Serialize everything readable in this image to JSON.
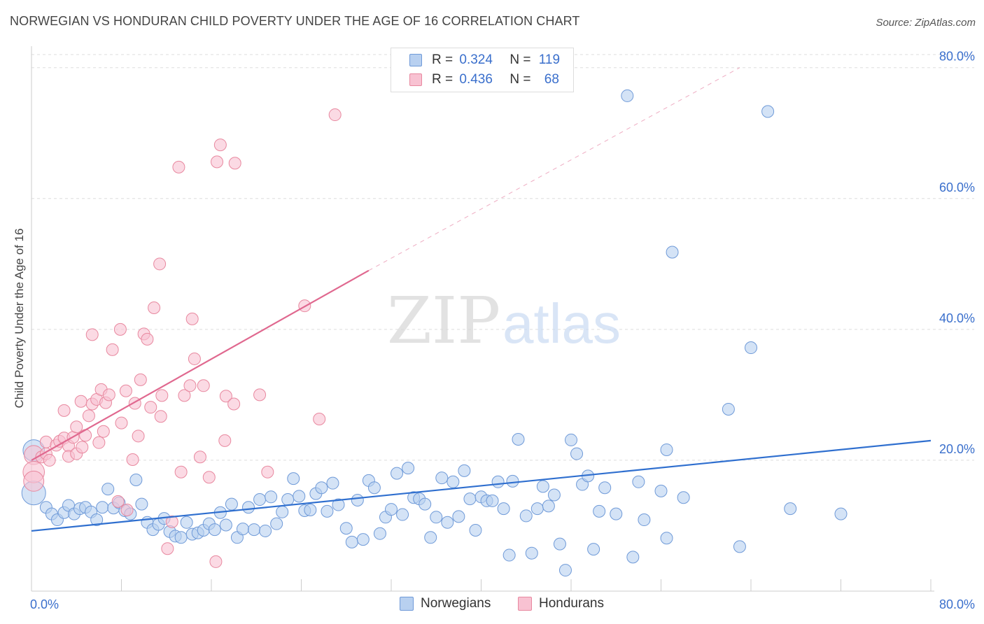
{
  "title": "NORWEGIAN VS HONDURAN CHILD POVERTY UNDER THE AGE OF 16 CORRELATION CHART",
  "source": "Source: ZipAtlas.com",
  "watermark": {
    "zip": "ZIP",
    "atlas": "atlas"
  },
  "colors": {
    "blue_fill": "#b8d0f0",
    "blue_stroke": "#6f9ad8",
    "blue_line": "#2f6fcf",
    "pink_fill": "#f8c2d2",
    "pink_stroke": "#e8889f",
    "pink_line": "#e0688f",
    "axis_text": "#3a6fcc",
    "grid": "#dddddd"
  },
  "legend_top": {
    "rows": [
      {
        "r_label": "R = ",
        "r_value": "0.324",
        "n_label": "N = ",
        "n_value": "119"
      },
      {
        "r_label": "R = ",
        "r_value": "0.436",
        "n_label": "N = ",
        "n_value": "68"
      }
    ]
  },
  "legend_bottom": [
    "Norwegians",
    "Hondurans"
  ],
  "chart_data": {
    "type": "scatter",
    "title": "NORWEGIAN VS HONDURAN CHILD POVERTY UNDER THE AGE OF 16 CORRELATION CHART",
    "xlabel": "",
    "ylabel": "Child Poverty Under the Age of 16",
    "xlim": [
      0,
      80
    ],
    "ylim": [
      0,
      82
    ],
    "x_tick_labels": [
      "0.0%",
      "80.0%"
    ],
    "y_ticks": [
      20,
      40,
      60,
      80
    ],
    "y_tick_labels": [
      "20.0%",
      "40.0%",
      "60.0%",
      "80.0%"
    ],
    "x_minor_ticks": [
      8,
      16,
      24,
      32,
      40,
      48,
      56,
      64,
      72,
      80
    ],
    "grid": true,
    "legend_position": "top-center",
    "series": [
      {
        "name": "Norwegians",
        "r": 0.324,
        "n": 119,
        "trend": {
          "x": [
            0,
            80
          ],
          "y": [
            9.2,
            23.0
          ],
          "dashed_extension": false
        },
        "points": [
          [
            0.2,
            21.5,
            1.8
          ],
          [
            0.2,
            15.0,
            2.0
          ],
          [
            1.3,
            12.8,
            1.0
          ],
          [
            1.8,
            11.8,
            1.0
          ],
          [
            2.3,
            10.9,
            1.0
          ],
          [
            2.9,
            12.0,
            1.0
          ],
          [
            3.3,
            13.1,
            1.0
          ],
          [
            3.8,
            11.8,
            1.0
          ],
          [
            4.3,
            12.6,
            1.0
          ],
          [
            4.8,
            12.8,
            1.0
          ],
          [
            5.3,
            12.1,
            1.0
          ],
          [
            5.8,
            10.9,
            1.0
          ],
          [
            6.3,
            12.8,
            1.0
          ],
          [
            6.8,
            15.6,
            1.0
          ],
          [
            7.3,
            12.7,
            1.0
          ],
          [
            7.8,
            13.5,
            1.0
          ],
          [
            8.3,
            12.3,
            1.0
          ],
          [
            8.8,
            11.8,
            1.0
          ],
          [
            9.3,
            17.0,
            1.0
          ],
          [
            9.8,
            13.3,
            1.0
          ],
          [
            10.3,
            10.5,
            1.0
          ],
          [
            10.8,
            9.4,
            1.0
          ],
          [
            11.3,
            10.2,
            1.0
          ],
          [
            11.8,
            11.1,
            1.0
          ],
          [
            12.3,
            9.1,
            1.0
          ],
          [
            12.8,
            8.4,
            1.0
          ],
          [
            13.3,
            8.2,
            1.0
          ],
          [
            13.8,
            10.5,
            1.0
          ],
          [
            14.3,
            8.7,
            1.0
          ],
          [
            14.8,
            8.9,
            1.0
          ],
          [
            15.3,
            9.3,
            1.0
          ],
          [
            15.8,
            10.3,
            1.0
          ],
          [
            16.3,
            9.4,
            1.0
          ],
          [
            16.8,
            12.0,
            1.0
          ],
          [
            17.3,
            10.1,
            1.0
          ],
          [
            17.8,
            13.3,
            1.0
          ],
          [
            18.3,
            8.2,
            1.0
          ],
          [
            18.8,
            9.5,
            1.0
          ],
          [
            19.3,
            12.8,
            1.0
          ],
          [
            19.8,
            9.4,
            1.0
          ],
          [
            20.3,
            14.0,
            1.0
          ],
          [
            20.8,
            9.2,
            1.0
          ],
          [
            21.3,
            14.4,
            1.0
          ],
          [
            21.8,
            10.3,
            1.0
          ],
          [
            22.3,
            12.1,
            1.0
          ],
          [
            22.8,
            14.0,
            1.0
          ],
          [
            23.3,
            17.2,
            1.0
          ],
          [
            23.8,
            14.5,
            1.0
          ],
          [
            24.3,
            12.3,
            1.0
          ],
          [
            24.8,
            12.4,
            1.0
          ],
          [
            25.3,
            14.9,
            1.0
          ],
          [
            25.8,
            15.8,
            1.0
          ],
          [
            26.3,
            12.2,
            1.0
          ],
          [
            26.8,
            16.5,
            1.0
          ],
          [
            27.3,
            13.2,
            1.0
          ],
          [
            28.0,
            9.6,
            1.0
          ],
          [
            28.5,
            7.5,
            1.0
          ],
          [
            29.0,
            13.9,
            1.0
          ],
          [
            29.5,
            7.9,
            1.0
          ],
          [
            30.0,
            16.9,
            1.0
          ],
          [
            30.5,
            15.8,
            1.0
          ],
          [
            31.0,
            8.8,
            1.0
          ],
          [
            31.5,
            11.3,
            1.0
          ],
          [
            32.0,
            12.5,
            1.0
          ],
          [
            32.5,
            18.0,
            1.0
          ],
          [
            33.0,
            11.7,
            1.0
          ],
          [
            33.5,
            18.8,
            1.0
          ],
          [
            34.0,
            14.3,
            1.0
          ],
          [
            34.5,
            14.1,
            1.0
          ],
          [
            35.0,
            13.3,
            1.0
          ],
          [
            35.5,
            8.2,
            1.0
          ],
          [
            36.0,
            11.3,
            1.0
          ],
          [
            36.5,
            17.3,
            1.0
          ],
          [
            37.0,
            10.5,
            1.0
          ],
          [
            37.5,
            16.7,
            1.0
          ],
          [
            38.0,
            11.4,
            1.0
          ],
          [
            38.5,
            18.4,
            1.0
          ],
          [
            39.0,
            14.1,
            1.0
          ],
          [
            39.5,
            9.3,
            1.0
          ],
          [
            40.0,
            14.4,
            1.0
          ],
          [
            40.5,
            13.8,
            1.0
          ],
          [
            41.0,
            13.8,
            1.0
          ],
          [
            41.5,
            16.7,
            1.0
          ],
          [
            42.0,
            12.6,
            1.0
          ],
          [
            42.5,
            5.5,
            1.0
          ],
          [
            42.8,
            16.8,
            1.0
          ],
          [
            43.3,
            23.2,
            1.0
          ],
          [
            44.0,
            11.5,
            1.0
          ],
          [
            44.5,
            5.8,
            1.0
          ],
          [
            45.0,
            12.6,
            1.0
          ],
          [
            45.5,
            16.0,
            1.0
          ],
          [
            46.0,
            13.0,
            1.0
          ],
          [
            46.5,
            14.7,
            1.0
          ],
          [
            47.0,
            7.2,
            1.0
          ],
          [
            47.5,
            3.2,
            1.0
          ],
          [
            48.0,
            23.1,
            1.0
          ],
          [
            48.5,
            21.0,
            1.0
          ],
          [
            49.0,
            16.3,
            1.0
          ],
          [
            49.5,
            17.6,
            1.0
          ],
          [
            50.0,
            6.4,
            1.0
          ],
          [
            50.5,
            12.2,
            1.0
          ],
          [
            51.0,
            15.8,
            1.0
          ],
          [
            52.0,
            11.8,
            1.0
          ],
          [
            53.0,
            75.7,
            1.0
          ],
          [
            53.5,
            5.2,
            1.0
          ],
          [
            54.0,
            16.7,
            1.0
          ],
          [
            54.5,
            10.9,
            1.0
          ],
          [
            56.0,
            15.3,
            1.0
          ],
          [
            56.5,
            21.6,
            1.0
          ],
          [
            56.5,
            8.1,
            1.0
          ],
          [
            57.0,
            51.8,
            1.0
          ],
          [
            58.0,
            14.3,
            1.0
          ],
          [
            62.0,
            27.8,
            1.0
          ],
          [
            63.0,
            6.8,
            1.0
          ],
          [
            64.0,
            37.2,
            1.0
          ],
          [
            65.5,
            73.3,
            1.0
          ],
          [
            67.5,
            12.6,
            1.0
          ],
          [
            72.0,
            11.8,
            1.0
          ]
        ]
      },
      {
        "name": "Hondurans",
        "r": 0.436,
        "n": 68,
        "trend": {
          "x": [
            0,
            30
          ],
          "y": [
            20.0,
            49.0
          ],
          "dashed_extension_to": [
            63,
            80
          ]
        },
        "points": [
          [
            0.2,
            20.8,
            1.6
          ],
          [
            0.2,
            18.2,
            1.8
          ],
          [
            0.2,
            16.8,
            1.7
          ],
          [
            0.9,
            20.5,
            1.0
          ],
          [
            1.3,
            21.0,
            1.0
          ],
          [
            1.3,
            22.8,
            1.0
          ],
          [
            1.6,
            20.0,
            1.0
          ],
          [
            2.2,
            22.3,
            1.0
          ],
          [
            2.5,
            22.9,
            1.0
          ],
          [
            2.9,
            23.4,
            1.0
          ],
          [
            2.9,
            27.6,
            1.0
          ],
          [
            3.3,
            22.2,
            1.0
          ],
          [
            3.3,
            20.6,
            1.0
          ],
          [
            3.7,
            23.5,
            1.0
          ],
          [
            4.0,
            21.0,
            1.0
          ],
          [
            4.0,
            25.1,
            1.0
          ],
          [
            4.4,
            29.0,
            1.0
          ],
          [
            4.5,
            22.0,
            1.0
          ],
          [
            4.8,
            23.8,
            1.0
          ],
          [
            5.1,
            26.8,
            1.0
          ],
          [
            5.4,
            28.6,
            1.0
          ],
          [
            5.4,
            39.2,
            1.0
          ],
          [
            5.8,
            29.3,
            1.0
          ],
          [
            6.0,
            22.7,
            1.0
          ],
          [
            6.2,
            30.8,
            1.0
          ],
          [
            6.4,
            24.4,
            1.0
          ],
          [
            6.6,
            28.8,
            1.0
          ],
          [
            6.9,
            30.0,
            1.0
          ],
          [
            7.2,
            36.9,
            1.0
          ],
          [
            7.7,
            13.7,
            1.0
          ],
          [
            7.9,
            40.0,
            1.0
          ],
          [
            8.0,
            25.7,
            1.0
          ],
          [
            8.4,
            30.6,
            1.0
          ],
          [
            8.5,
            12.4,
            1.0
          ],
          [
            9.0,
            20.1,
            1.0
          ],
          [
            9.2,
            28.7,
            1.0
          ],
          [
            9.5,
            23.7,
            1.0
          ],
          [
            9.7,
            32.3,
            1.0
          ],
          [
            10.0,
            39.3,
            1.0
          ],
          [
            10.3,
            38.5,
            1.0
          ],
          [
            10.6,
            28.1,
            1.0
          ],
          [
            10.9,
            43.3,
            1.0
          ],
          [
            11.4,
            50.0,
            1.0
          ],
          [
            11.5,
            26.7,
            1.0
          ],
          [
            11.6,
            29.9,
            1.0
          ],
          [
            12.1,
            6.5,
            1.0
          ],
          [
            12.5,
            10.6,
            1.0
          ],
          [
            13.1,
            64.8,
            1.0
          ],
          [
            13.3,
            18.2,
            1.0
          ],
          [
            13.6,
            29.9,
            1.0
          ],
          [
            14.1,
            31.4,
            1.0
          ],
          [
            14.3,
            41.6,
            1.0
          ],
          [
            14.5,
            35.5,
            1.0
          ],
          [
            15.0,
            20.5,
            1.0
          ],
          [
            15.3,
            31.4,
            1.0
          ],
          [
            15.8,
            17.4,
            1.0
          ],
          [
            16.4,
            4.5,
            1.0
          ],
          [
            16.5,
            65.6,
            1.0
          ],
          [
            16.8,
            68.2,
            1.0
          ],
          [
            17.2,
            23.0,
            1.0
          ],
          [
            17.3,
            29.8,
            1.0
          ],
          [
            18.0,
            28.6,
            1.0
          ],
          [
            18.1,
            65.4,
            1.0
          ],
          [
            20.3,
            30.0,
            1.0
          ],
          [
            21.0,
            18.2,
            1.0
          ],
          [
            24.3,
            43.6,
            1.0
          ],
          [
            25.6,
            26.3,
            1.0
          ],
          [
            27.0,
            72.8,
            1.0
          ]
        ]
      }
    ]
  }
}
